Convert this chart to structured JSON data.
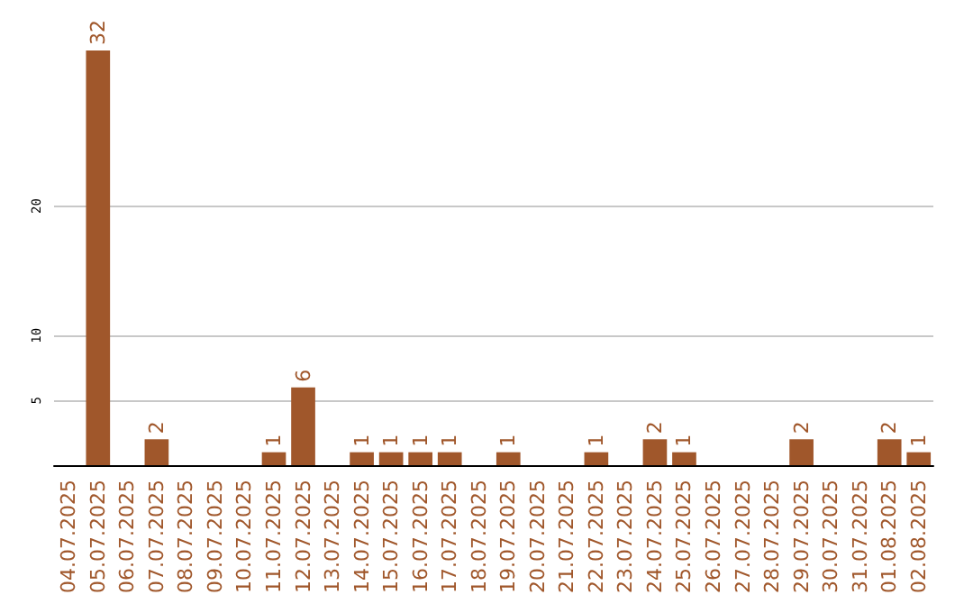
{
  "chart_data": {
    "type": "bar",
    "categories": [
      "04.07.2025",
      "05.07.2025",
      "06.07.2025",
      "07.07.2025",
      "08.07.2025",
      "09.07.2025",
      "10.07.2025",
      "11.07.2025",
      "12.07.2025",
      "13.07.2025",
      "14.07.2025",
      "15.07.2025",
      "16.07.2025",
      "17.07.2025",
      "18.07.2025",
      "19.07.2025",
      "20.07.2025",
      "21.07.2025",
      "22.07.2025",
      "23.07.2025",
      "24.07.2025",
      "25.07.2025",
      "26.07.2025",
      "27.07.2025",
      "28.07.2025",
      "29.07.2025",
      "30.07.2025",
      "31.07.2025",
      "01.08.2025",
      "02.08.2025"
    ],
    "values": [
      0,
      32,
      0,
      2,
      0,
      0,
      0,
      1,
      6,
      0,
      1,
      1,
      1,
      1,
      0,
      1,
      0,
      0,
      1,
      0,
      2,
      1,
      0,
      0,
      0,
      2,
      0,
      0,
      2,
      1
    ],
    "value_labels": [
      null,
      "32",
      null,
      "2",
      null,
      null,
      null,
      "1",
      "6",
      null,
      "1",
      "1",
      "1",
      "1",
      null,
      "1",
      null,
      null,
      "1",
      null,
      "2",
      "1",
      null,
      null,
      null,
      "2",
      null,
      null,
      "2",
      "1"
    ],
    "color": "#a0572b",
    "ylim": [
      0,
      32
    ],
    "yticks": [
      5,
      10,
      20
    ],
    "grid": "y"
  }
}
